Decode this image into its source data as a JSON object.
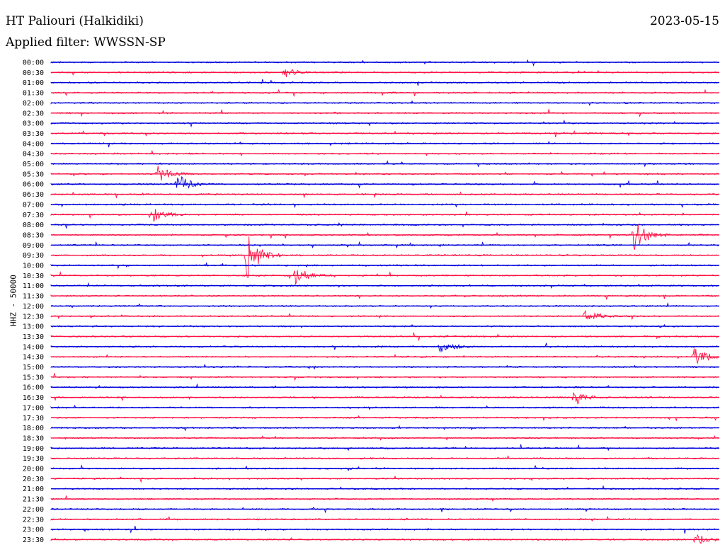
{
  "header": {
    "station": "HT Paliouri (Halkidiki)",
    "date": "2023-05-15",
    "filter_label": "Applied filter: WWSSN-SP"
  },
  "axis": {
    "ylabel": "HHZ - 50000"
  },
  "colors": {
    "even_trace": "#0000dd",
    "odd_trace": "#ff1144"
  },
  "chart_data": {
    "type": "line",
    "title": "",
    "ylabel": "HHZ - 50000",
    "xlabel": "",
    "grid": false,
    "trace_duration_minutes": 30,
    "row_labels": [
      "00:00",
      "00:30",
      "01:00",
      "01:30",
      "02:00",
      "02:30",
      "03:00",
      "03:30",
      "04:00",
      "04:30",
      "05:00",
      "05:30",
      "06:00",
      "06:30",
      "07:00",
      "07:30",
      "08:00",
      "08:30",
      "09:00",
      "09:30",
      "10:00",
      "10:30",
      "11:00",
      "11:30",
      "12:00",
      "12:30",
      "13:00",
      "13:30",
      "14:00",
      "14:30",
      "15:00",
      "15:30",
      "16:00",
      "16:30",
      "17:00",
      "17:30",
      "18:00",
      "18:30",
      "19:00",
      "19:30",
      "20:00",
      "20:30",
      "21:00",
      "21:30",
      "22:00",
      "22:30",
      "23:00",
      "23:30"
    ],
    "row_colors": [
      "blue",
      "red"
    ],
    "events": [
      {
        "row": "00:30",
        "minute": 10.5,
        "amplitude": 0.5
      },
      {
        "row": "05:30",
        "minute": 4.8,
        "amplitude": 0.9
      },
      {
        "row": "06:00",
        "minute": 5.7,
        "amplitude": 1.0
      },
      {
        "row": "07:30",
        "minute": 4.5,
        "amplitude": 0.8
      },
      {
        "row": "09:30",
        "minute": 8.8,
        "amplitude": 2.5
      },
      {
        "row": "08:30",
        "minute": 26.2,
        "amplitude": 1.7
      },
      {
        "row": "10:30",
        "minute": 11.0,
        "amplitude": 1.0
      },
      {
        "row": "12:30",
        "minute": 24.0,
        "amplitude": 0.7
      },
      {
        "row": "14:00",
        "minute": 17.5,
        "amplitude": 0.6
      },
      {
        "row": "14:30",
        "minute": 28.9,
        "amplitude": 1.0
      },
      {
        "row": "16:30",
        "minute": 23.5,
        "amplitude": 0.8
      },
      {
        "row": "23:30",
        "minute": 28.9,
        "amplitude": 0.7
      }
    ]
  }
}
